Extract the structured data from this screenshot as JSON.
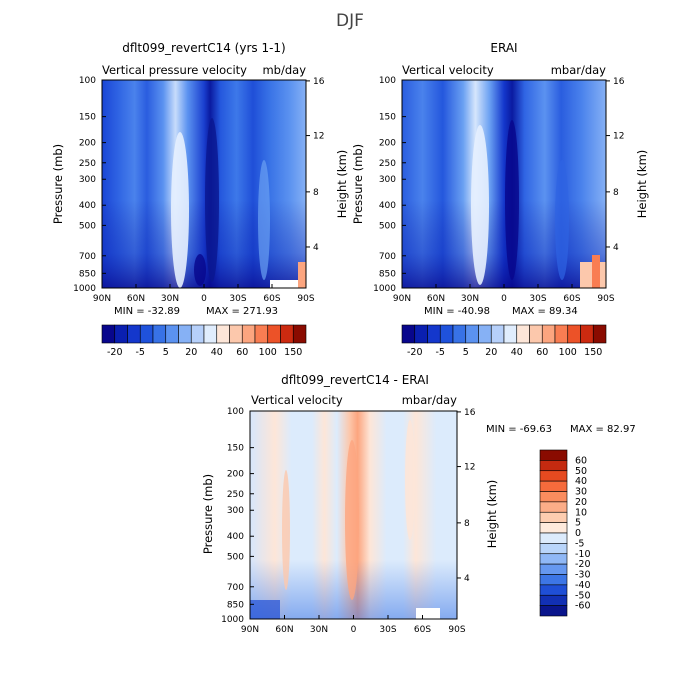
{
  "page": {
    "title": "DJF"
  },
  "chart_data": [
    {
      "type": "heatmap",
      "id": "model",
      "title": "dflt099_revertC14 (yrs 1-1)",
      "left_label": "Vertical pressure velocity",
      "right_label": "mb/day",
      "ylabel": "Pressure (mb)",
      "ylabel_right": "Height (km)",
      "x_ticks": [
        "90N",
        "60N",
        "30N",
        "0",
        "30S",
        "60S",
        "90S"
      ],
      "y_ticks": [
        "100",
        "150",
        "200",
        "250",
        "300",
        "400",
        "500",
        "700",
        "850",
        "1000"
      ],
      "height_ticks": [
        "16",
        "12",
        "8",
        "4"
      ],
      "min_label": "MIN = -32.89",
      "max_label": "MAX = 271.93",
      "colorbar_labels": [
        "-20",
        "-5",
        "5",
        "20",
        "40",
        "60",
        "100",
        "150"
      ],
      "colorbar_colors": [
        "#08068c",
        "#0a1fb0",
        "#1437cc",
        "#1f52dc",
        "#3872e6",
        "#5b92f0",
        "#86b1f5",
        "#b6d0fa",
        "#e0edfd",
        "#fde6d8",
        "#fcc8ac",
        "#fca57f",
        "#f97d52",
        "#ec5228",
        "#cc2a10",
        "#8a0b00"
      ]
    },
    {
      "type": "heatmap",
      "id": "erai",
      "title": "ERAI",
      "left_label": "Vertical velocity",
      "right_label": "mbar/day",
      "ylabel": "Pressure (mb)",
      "ylabel_right": "Height (km)",
      "x_ticks": [
        "90N",
        "60N",
        "30N",
        "0",
        "30S",
        "60S",
        "90S"
      ],
      "y_ticks": [
        "100",
        "150",
        "200",
        "250",
        "300",
        "400",
        "500",
        "700",
        "850",
        "1000"
      ],
      "height_ticks": [
        "16",
        "12",
        "8",
        "4"
      ],
      "min_label": "MIN = -40.98",
      "max_label": "MAX = 89.34",
      "colorbar_labels": [
        "-20",
        "-5",
        "5",
        "20",
        "40",
        "60",
        "100",
        "150"
      ],
      "colorbar_colors": [
        "#08068c",
        "#0a1fb0",
        "#1437cc",
        "#1f52dc",
        "#3872e6",
        "#5b92f0",
        "#86b1f5",
        "#b6d0fa",
        "#e0edfd",
        "#fde6d8",
        "#fcc8ac",
        "#fca57f",
        "#f97d52",
        "#ec5228",
        "#cc2a10",
        "#8a0b00"
      ]
    },
    {
      "type": "heatmap",
      "id": "diff",
      "title": "dflt099_revertC14 - ERAI",
      "left_label": "Vertical velocity",
      "right_label": "mbar/day",
      "ylabel": "Pressure (mb)",
      "ylabel_right": "Height (km)",
      "x_ticks": [
        "90N",
        "60N",
        "30N",
        "0",
        "30S",
        "60S",
        "90S"
      ],
      "y_ticks": [
        "100",
        "150",
        "200",
        "250",
        "300",
        "400",
        "500",
        "700",
        "850",
        "1000"
      ],
      "height_ticks": [
        "16",
        "12",
        "8",
        "4"
      ],
      "min_label": "MIN = -69.63",
      "max_label": "MAX =  82.97",
      "colorbar_labels": [
        "60",
        "50",
        "40",
        "30",
        "20",
        "10",
        "5",
        "0",
        "-5",
        "-10",
        "-20",
        "-30",
        "-40",
        "-50",
        "-60"
      ],
      "colorbar_colors": [
        "#8a0b00",
        "#c42a10",
        "#e64a20",
        "#f66b3c",
        "#fa8c5e",
        "#fcad88",
        "#fdcdb0",
        "#feeadc",
        "#dcebfc",
        "#b9d5fa",
        "#90b8f6",
        "#6698f0",
        "#3d76e6",
        "#1f4fd6",
        "#1230b4",
        "#0a158c"
      ]
    }
  ]
}
